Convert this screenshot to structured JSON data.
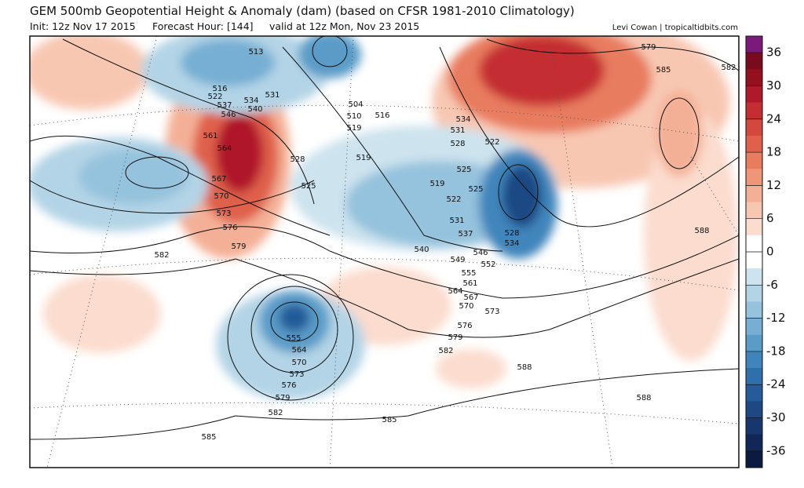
{
  "header": {
    "title": "GEM 500mb Geopotential Height & Anomaly (dam) (based on CFSR 1981-2010 Climatology)",
    "init": "Init: 12z Nov 17 2015",
    "forecast": "Forecast Hour: [144]",
    "valid": "valid at 12z Mon, Nov 23 2015",
    "credit": "Levi Cowan | tropicaltidbits.com"
  },
  "map": {
    "contour_labels": [
      "513",
      "516",
      "522",
      "537",
      "534",
      "531",
      "546",
      "540",
      "561",
      "564",
      "567",
      "570",
      "573",
      "576",
      "579",
      "582",
      "504",
      "510",
      "516",
      "519",
      "528",
      "519",
      "525",
      "519",
      "525",
      "522",
      "531",
      "537",
      "540",
      "549",
      "546",
      "534",
      "531",
      "528",
      "522",
      "525",
      "528",
      "534",
      "552",
      "555",
      "561",
      "564",
      "567",
      "570",
      "573",
      "576",
      "579",
      "582",
      "588",
      "585",
      "555",
      "564",
      "570",
      "573",
      "576",
      "579",
      "582",
      "585",
      "588",
      "588",
      "579",
      "585",
      "582"
    ]
  },
  "colorbar": {
    "lim": [
      -39,
      39
    ],
    "ticks": [
      36,
      30,
      24,
      18,
      12,
      6,
      0,
      -6,
      -12,
      -18,
      -24,
      -30,
      -36
    ],
    "colors": [
      "#7b1a7a",
      "#7a0a1e",
      "#95101f",
      "#b0192a",
      "#c42e32",
      "#d4473c",
      "#df614c",
      "#e87c5f",
      "#ef9678",
      "#f4b096",
      "#f8c7b2",
      "#fbdcce",
      "#ffffff",
      "#ffffff",
      "#cde3ee",
      "#b3d4e6",
      "#95c2dd",
      "#76afd3",
      "#5a9bc8",
      "#3f85bb",
      "#2f6fab",
      "#245b98",
      "#1d4884",
      "#17366e",
      "#102757",
      "#0a1a40"
    ]
  }
}
